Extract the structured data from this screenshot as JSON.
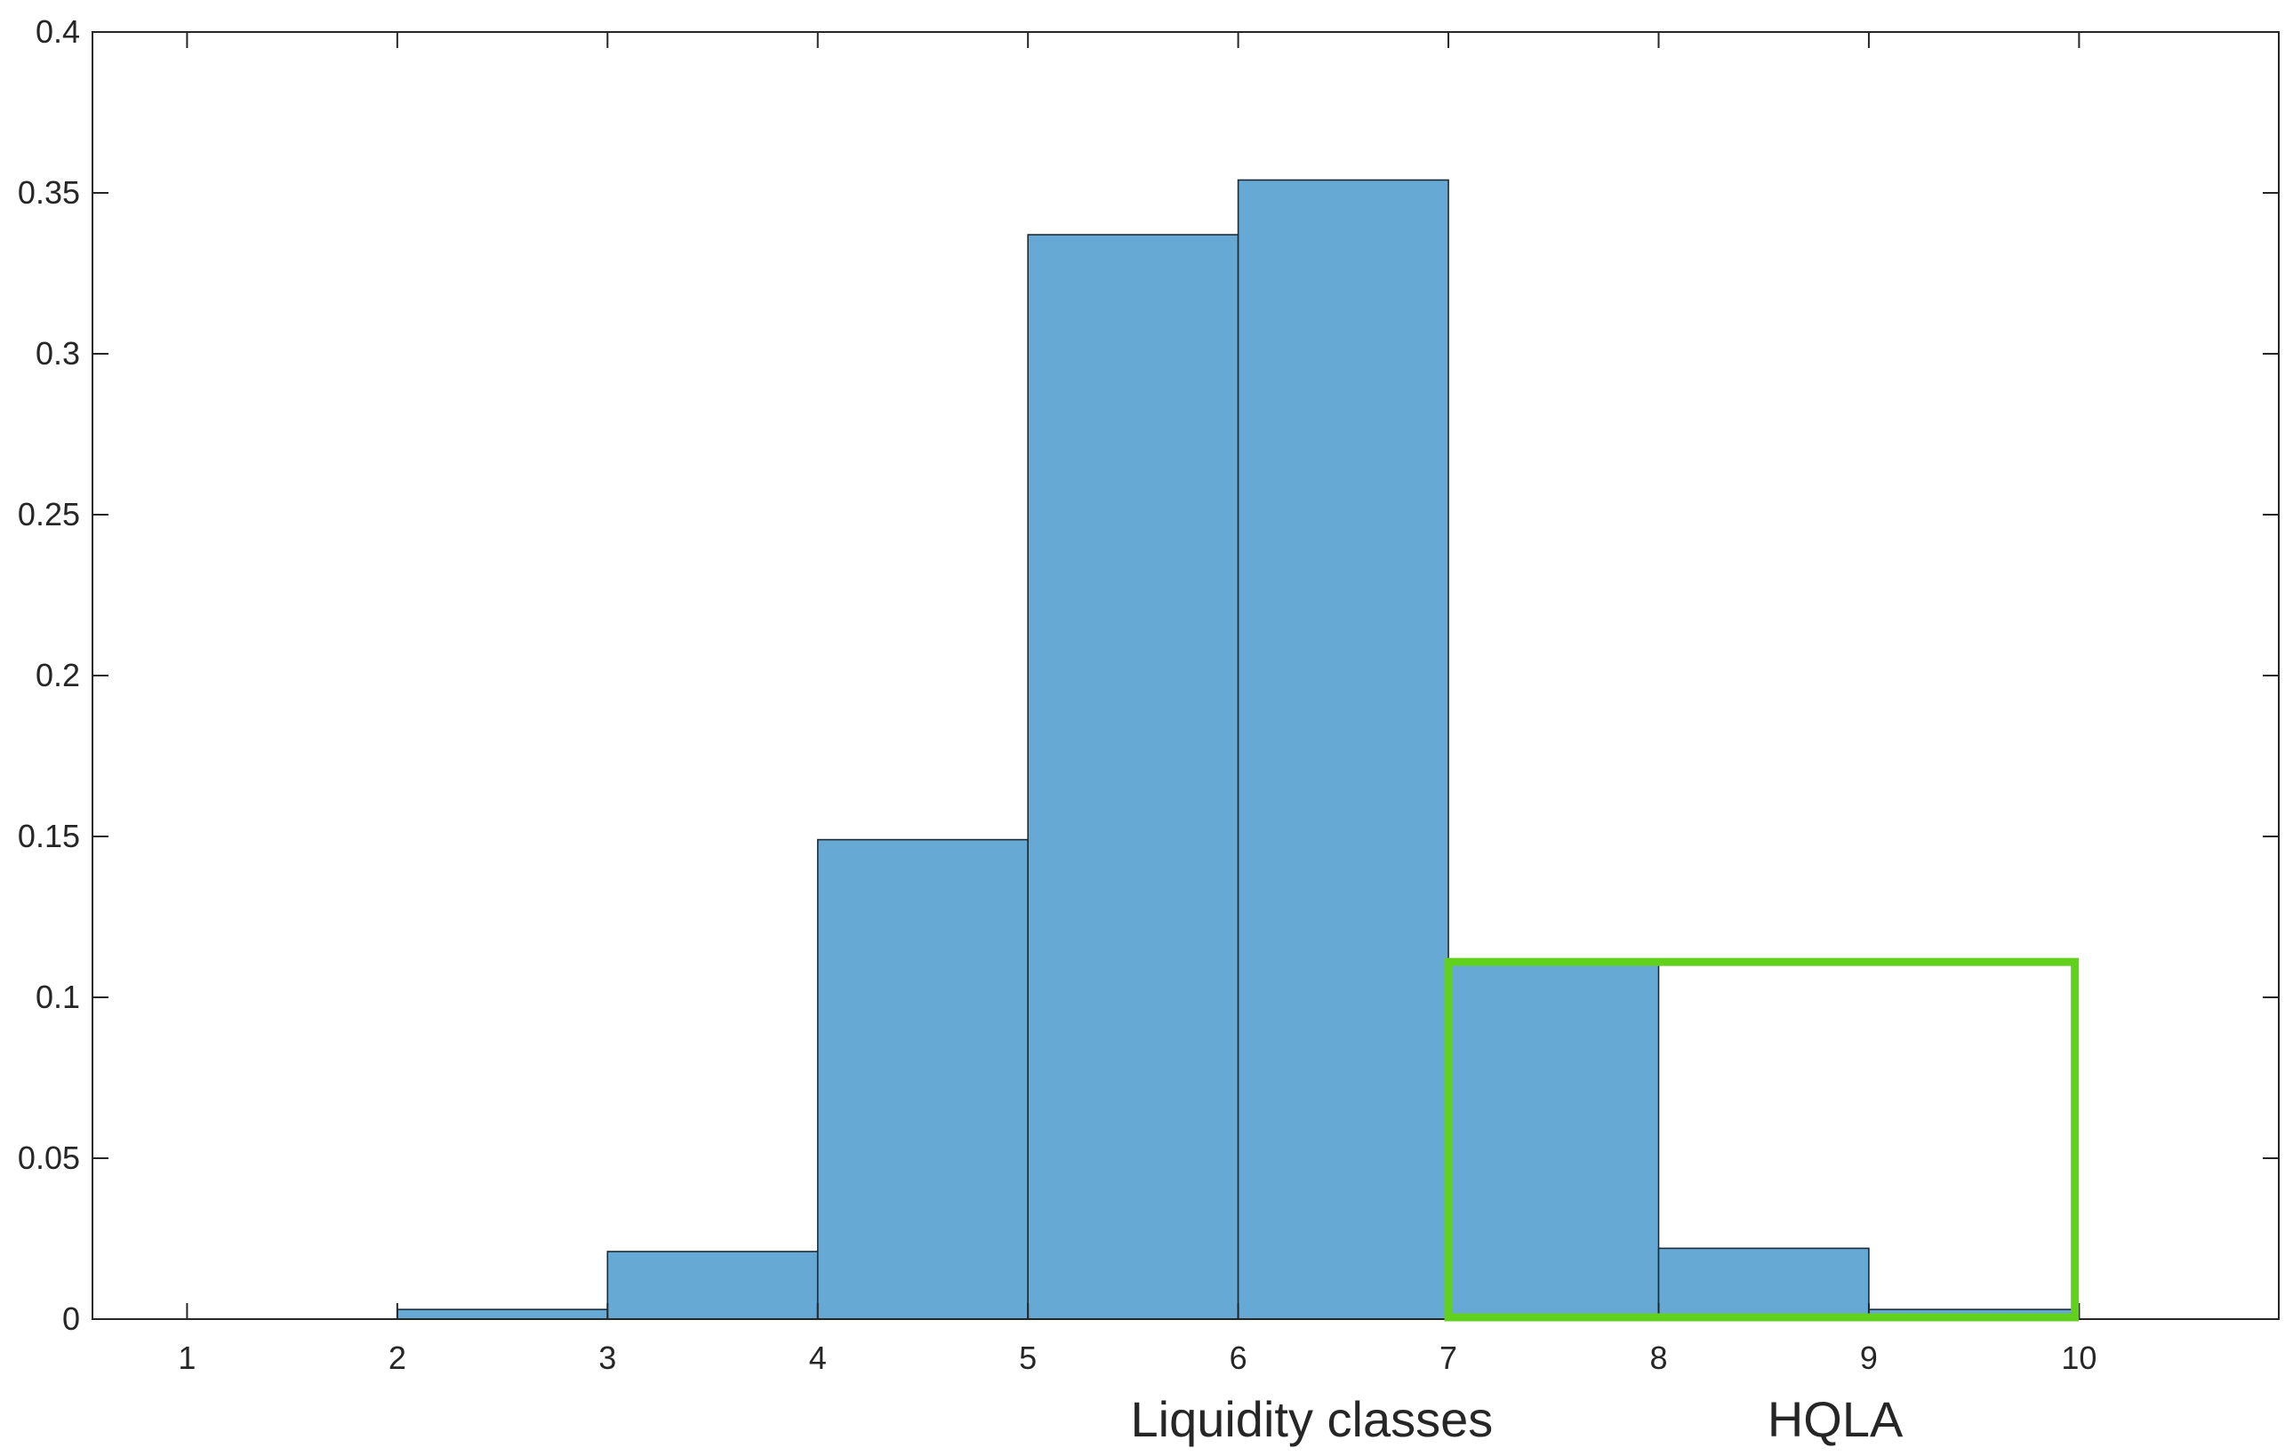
{
  "chart_data": {
    "type": "bar",
    "subtype": "histogram",
    "bin_edges": [
      1,
      2,
      3,
      4,
      5,
      6,
      7,
      8,
      9,
      10
    ],
    "bins": [
      {
        "from": 1,
        "to": 2,
        "value": 0.0
      },
      {
        "from": 2,
        "to": 3,
        "value": 0.003
      },
      {
        "from": 3,
        "to": 4,
        "value": 0.021
      },
      {
        "from": 4,
        "to": 5,
        "value": 0.149
      },
      {
        "from": 5,
        "to": 6,
        "value": 0.337
      },
      {
        "from": 6,
        "to": 7,
        "value": 0.354
      },
      {
        "from": 7,
        "to": 8,
        "value": 0.111
      },
      {
        "from": 8,
        "to": 9,
        "value": 0.022
      },
      {
        "from": 9,
        "to": 10,
        "value": 0.003
      }
    ],
    "xlabel": "Liquidity classes",
    "ylabel": "",
    "title": "",
    "xlim": [
      0.55,
      10.95
    ],
    "ylim": [
      0,
      0.4
    ],
    "x_ticks": [
      "1",
      "2",
      "3",
      "4",
      "5",
      "6",
      "7",
      "8",
      "9",
      "10"
    ],
    "y_ticks": [
      "0",
      "0.05",
      "0.1",
      "0.15",
      "0.2",
      "0.25",
      "0.3",
      "0.35",
      "0.4"
    ],
    "grid": false,
    "bar_color": "#66a9d5",
    "bar_edge_color": "#1c2b36",
    "highlight": {
      "label": "HQLA",
      "x_from": 7,
      "x_to": 9.98,
      "y_top": 0.111,
      "color": "#62d11e"
    }
  }
}
